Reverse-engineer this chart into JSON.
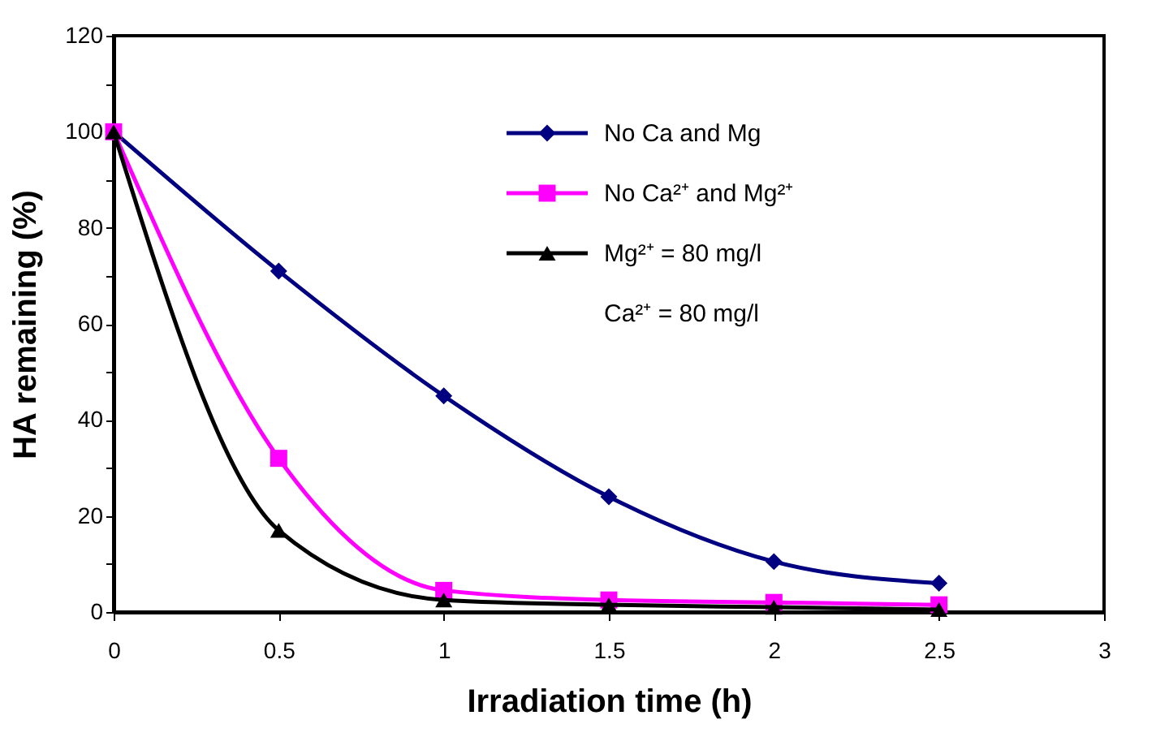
{
  "chart_data": {
    "type": "line",
    "xlabel": "Irradiation time (h)",
    "ylabel": "HA remaining (%)",
    "x": [
      0,
      0.5,
      1,
      1.5,
      2,
      2.5
    ],
    "series": [
      {
        "name": "No Ca and Mg",
        "color": "#000080",
        "marker": "diamond",
        "values": [
          100,
          71,
          45,
          24,
          10.5,
          6
        ]
      },
      {
        "name": "No Ca²⁺ and Mg²⁺",
        "color": "#ff00ff",
        "marker": "square",
        "values": [
          100,
          32,
          4.5,
          2.5,
          2,
          1.5
        ]
      },
      {
        "name": "Mg²⁺ = 80 mg/l",
        "color": "#000000",
        "marker": "triangle",
        "values": [
          100,
          17,
          2.5,
          1.5,
          1,
          0.5
        ]
      }
    ],
    "annotations": [
      "Ca²⁺ = 80 mg/l"
    ],
    "xlim": [
      0,
      3
    ],
    "xticks": [
      0,
      0.5,
      1,
      1.5,
      2,
      2.5,
      3
    ],
    "ylim": [
      0,
      120
    ],
    "yticks": [
      0,
      {
        "value": 10,
        "label": null
      },
      20,
      {
        "value": 30,
        "label": null
      },
      40,
      {
        "value": 50,
        "label": null
      },
      60,
      {
        "value": 70,
        "label": null
      },
      80,
      {
        "value": 90,
        "label": null
      },
      100,
      {
        "value": 110,
        "label": null
      },
      120
    ],
    "grid": false,
    "legend": "top right",
    "line_style": "solid"
  }
}
